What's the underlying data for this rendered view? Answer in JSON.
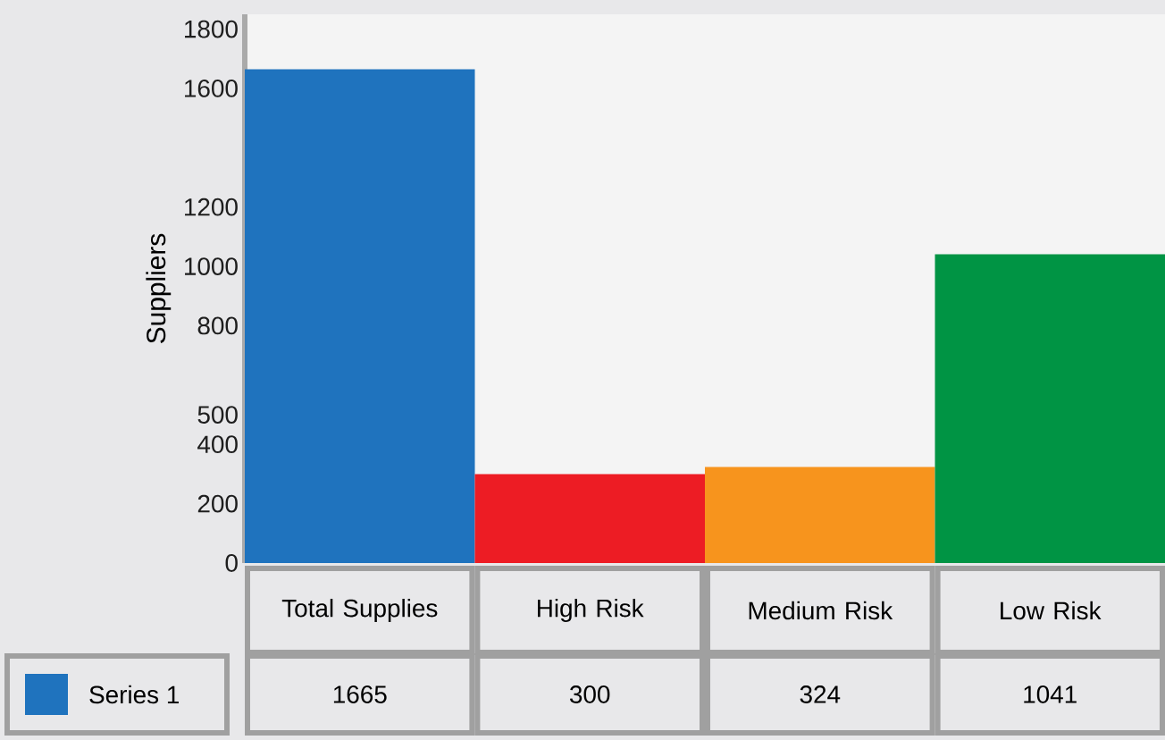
{
  "chart_data": {
    "type": "bar",
    "ylabel": "Suppliers",
    "categories": [
      "Total Supplies",
      "High Risk",
      "Medium Risk",
      "Low Risk"
    ],
    "series": [
      {
        "name": "Series 1",
        "color": "#1f73be",
        "colors": [
          "#1f73be",
          "#ed1c24",
          "#f7941d",
          "#009444"
        ],
        "values": [
          1665,
          300,
          324,
          1041
        ]
      }
    ],
    "ylim": [
      0,
      1850
    ],
    "yticks": [
      0,
      200,
      400,
      500,
      800,
      1000,
      1200,
      1600,
      1800
    ],
    "data_labels": true,
    "legend": "bottom left",
    "grid": false
  }
}
